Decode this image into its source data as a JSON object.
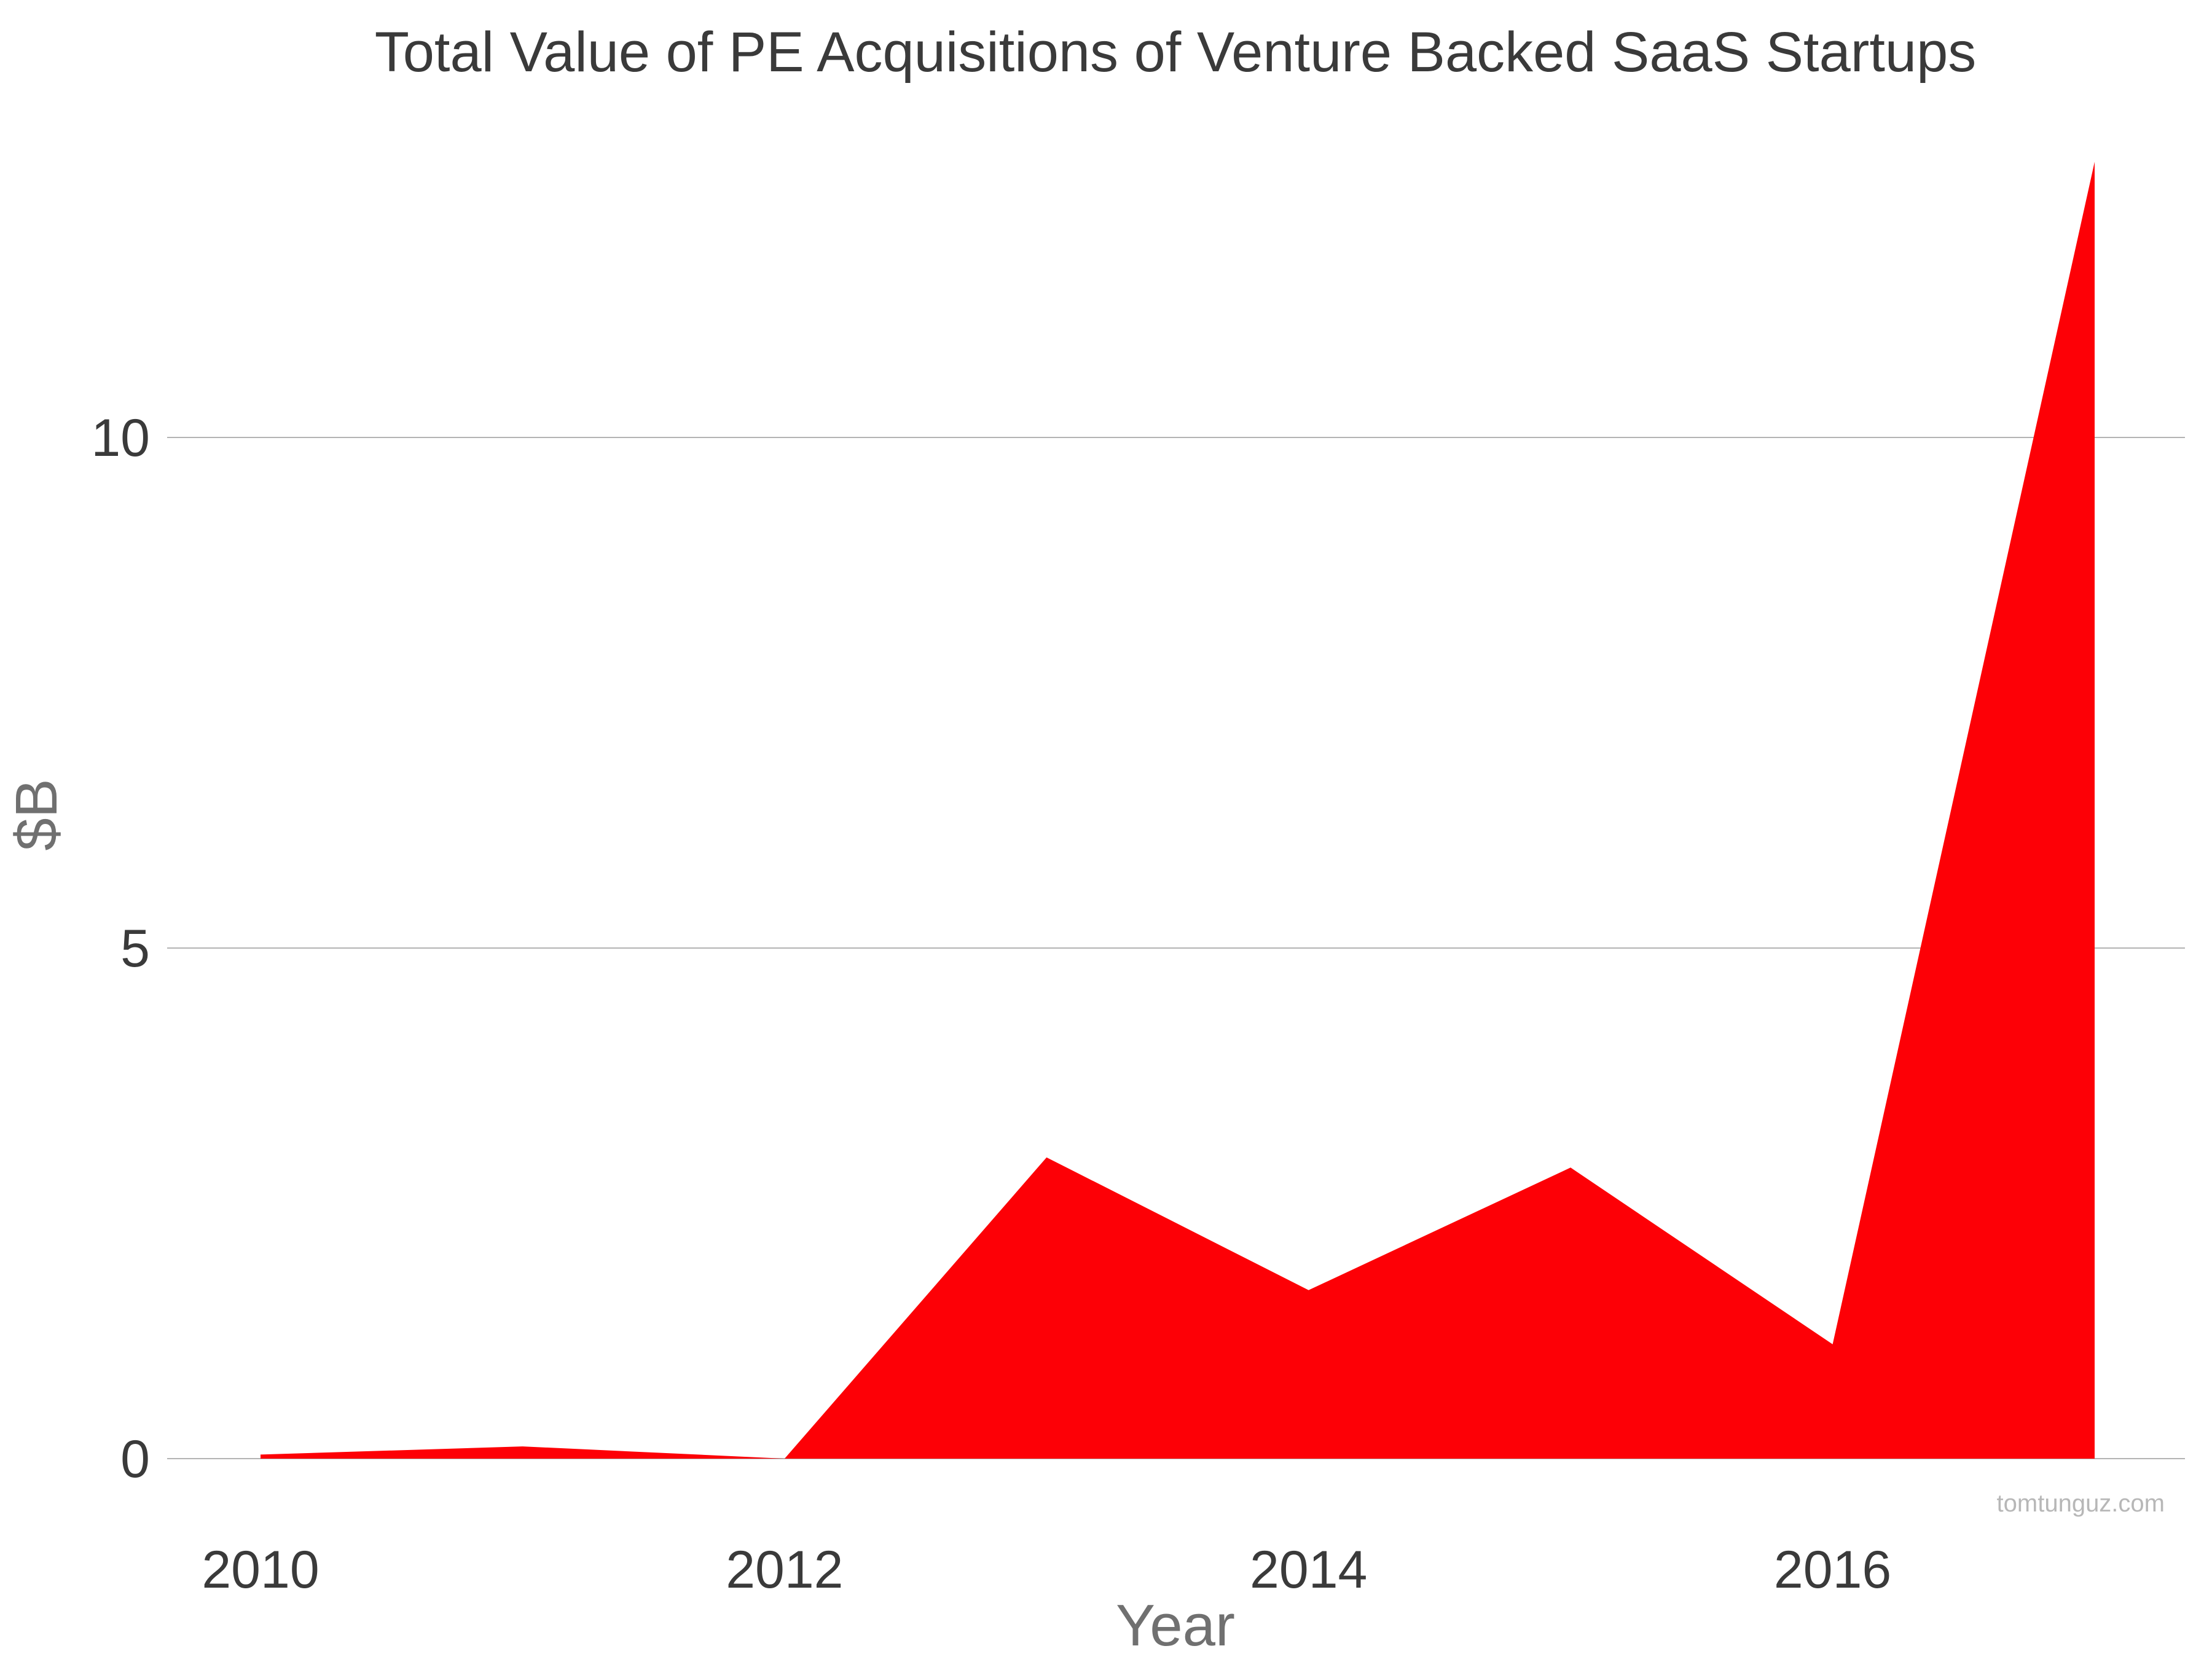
{
  "chart_data": {
    "type": "area",
    "title": "Total Value of PE Acquisitions of Venture Backed SaaS Startups",
    "xlabel": "Year",
    "ylabel": "$B",
    "x": [
      2010,
      2011,
      2012,
      2013,
      2014,
      2015,
      2016,
      2017
    ],
    "values": [
      0.04,
      0.12,
      0.0,
      2.95,
      1.65,
      2.85,
      1.12,
      12.7
    ],
    "x_ticks": [
      "2010",
      "2012",
      "2014",
      "2016"
    ],
    "x_tick_values": [
      2010,
      2012,
      2014,
      2016
    ],
    "y_ticks": [
      "0",
      "5",
      "10"
    ],
    "y_tick_values": [
      0,
      5,
      10
    ],
    "xlim": [
      2010,
      2017
    ],
    "ylim": [
      0,
      12.7
    ],
    "grid": "horizontal",
    "legend": "none",
    "colors": {
      "fill": "#fd0006",
      "grid": "#b3b3b3",
      "title": "#3a3a3a",
      "tick": "#3a3a3a",
      "axis_label": "#707070",
      "watermark": "#b7b7b7"
    }
  },
  "watermark": "tomtunguz.com"
}
